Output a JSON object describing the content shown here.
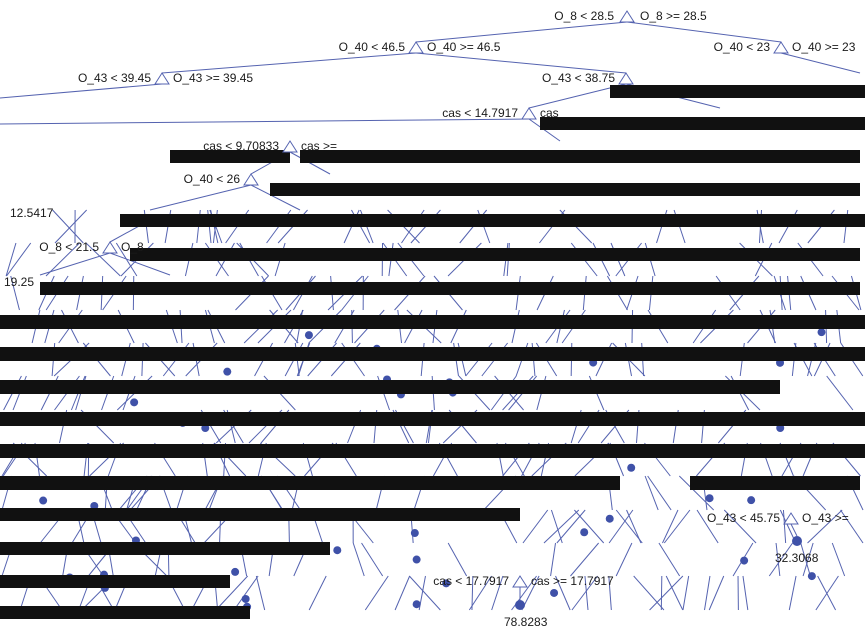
{
  "colors": {
    "edge": "#5563b0",
    "leaf": "#3f51a8",
    "text": "#1a1a1a",
    "background": "#ffffff"
  },
  "tree": {
    "splits": [
      {
        "left": "O_8 < 28.5",
        "right": "O_8 >= 28.5"
      },
      {
        "left": "O_40 < 46.5",
        "right": "O_40 >= 46.5"
      },
      {
        "left": "O_40 < 23",
        "right": "O_40 >= 23"
      },
      {
        "left": "O_43 < 39.45",
        "right": "O_43 >= 39.45"
      },
      {
        "left": "O_43 < 38.75",
        "right": ""
      },
      {
        "left": "cas < 14.7917",
        "right": "cas"
      },
      {
        "left": "cas < 9.70833",
        "right": "cas >="
      },
      {
        "left": "O_40 < 26",
        "right": ""
      },
      {
        "left": "O_8 < 21.5",
        "right": "O_8"
      },
      {
        "left": "cas < 17.7917",
        "right": "cas >= 17.7917"
      },
      {
        "left": "O_43 < 45.75",
        "right": "O_43 >="
      }
    ],
    "values": [
      "12.5417",
      "19.25",
      "78.8283",
      "32.3068"
    ]
  }
}
